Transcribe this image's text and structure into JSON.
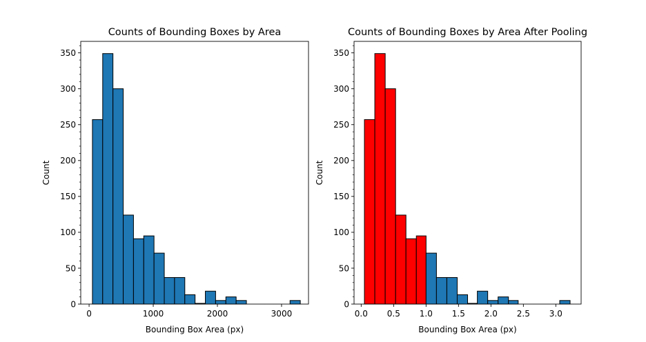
{
  "chart_data": [
    {
      "type": "bar",
      "title": "Counts of Bounding Boxes by Area",
      "xlabel": "Bounding Box Area (px)",
      "ylabel": "Count",
      "xlim": [
        -130,
        3420
      ],
      "ylim": [
        0,
        366
      ],
      "xticks": [
        0,
        1000,
        2000,
        3000
      ],
      "yticks": [
        0,
        50,
        100,
        150,
        200,
        250,
        300,
        350
      ],
      "bins": [
        [
          52,
          212,
          257
        ],
        [
          212,
          372,
          349
        ],
        [
          372,
          532,
          300
        ],
        [
          532,
          692,
          124
        ],
        [
          692,
          852,
          91
        ],
        [
          852,
          1012,
          95
        ],
        [
          1012,
          1172,
          71
        ],
        [
          1172,
          1332,
          37
        ],
        [
          1332,
          1492,
          37
        ],
        [
          1492,
          1652,
          13
        ],
        [
          1652,
          1812,
          1
        ],
        [
          1812,
          1972,
          18
        ],
        [
          1972,
          2132,
          5
        ],
        [
          2132,
          2292,
          10
        ],
        [
          2292,
          2452,
          5
        ],
        [
          3132,
          3292,
          5
        ]
      ],
      "bin_colors": [
        "#1f77b4"
      ],
      "edge_color": "#000000",
      "grid": false,
      "minor_ticks_y": true
    },
    {
      "type": "bar",
      "title": "Counts of Bounding Boxes by Area After Pooling",
      "xlabel": "Bounding Box Area (px)",
      "ylabel": "Count",
      "xlim": [
        -0.11,
        3.39
      ],
      "ylim": [
        0,
        366
      ],
      "xticks": [
        0.0,
        0.5,
        1.0,
        1.5,
        2.0,
        2.5,
        3.0
      ],
      "xtick_labels": [
        "0.0",
        "0.5",
        "1.0",
        "1.5",
        "2.0",
        "2.5",
        "3.0"
      ],
      "yticks": [
        0,
        50,
        100,
        150,
        200,
        250,
        300,
        350
      ],
      "bins": [
        [
          0.05,
          0.21,
          257
        ],
        [
          0.21,
          0.37,
          349
        ],
        [
          0.37,
          0.53,
          300
        ],
        [
          0.53,
          0.69,
          124
        ],
        [
          0.69,
          0.85,
          91
        ],
        [
          0.85,
          1.0,
          95
        ],
        [
          1.0,
          1.16,
          71
        ],
        [
          1.16,
          1.32,
          37
        ],
        [
          1.32,
          1.48,
          37
        ],
        [
          1.48,
          1.64,
          13
        ],
        [
          1.64,
          1.79,
          1
        ],
        [
          1.79,
          1.95,
          18
        ],
        [
          1.95,
          2.11,
          5
        ],
        [
          2.11,
          2.27,
          10
        ],
        [
          2.27,
          2.42,
          5
        ],
        [
          3.06,
          3.22,
          5
        ]
      ],
      "highlight_count": 6,
      "highlight_color": "#ff0000",
      "bin_colors": [
        "#1f77b4"
      ],
      "edge_color": "#000000",
      "grid": false,
      "minor_ticks_y": true
    }
  ]
}
